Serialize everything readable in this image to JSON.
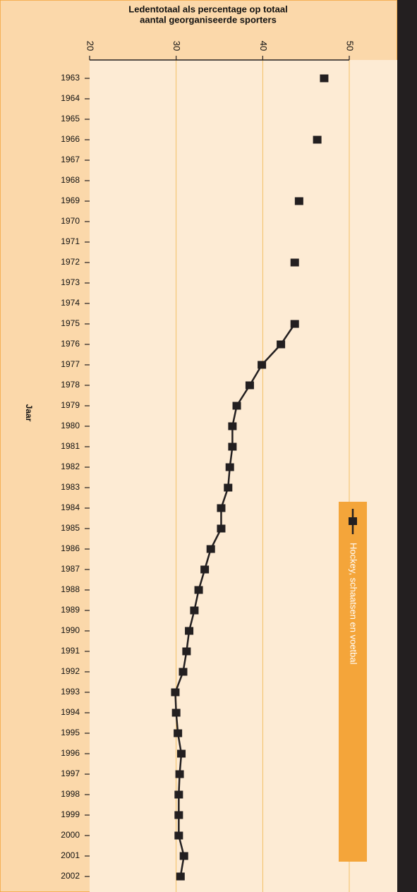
{
  "chart_data": {
    "type": "line",
    "title": [
      "Ledentotaal als percentage op totaal",
      "aantal georganiseerde sporters"
    ],
    "y_label": "Jaar",
    "categories": [
      "1963",
      "1964",
      "1965",
      "1966",
      "1967",
      "1968",
      "1969",
      "1970",
      "1971",
      "1972",
      "1973",
      "1974",
      "1975",
      "1976",
      "1977",
      "1978",
      "1979",
      "1980",
      "1981",
      "1982",
      "1983",
      "1984",
      "1985",
      "1986",
      "1987",
      "1988",
      "1989",
      "1990",
      "1991",
      "1992",
      "1993",
      "1994",
      "1995",
      "1996",
      "1997",
      "1998",
      "1999",
      "2000",
      "2001",
      "2002"
    ],
    "series": [
      {
        "name": "Hockey, schaatsen en voetbal",
        "color": "#231f20",
        "values": [
          47.1,
          null,
          null,
          46.3,
          null,
          null,
          44.2,
          null,
          null,
          43.7,
          null,
          null,
          43.7,
          42.1,
          39.9,
          38.5,
          37.0,
          36.5,
          36.5,
          36.2,
          36.0,
          35.2,
          35.2,
          34.0,
          33.3,
          32.6,
          32.1,
          31.5,
          31.2,
          30.8,
          29.9,
          30.0,
          30.2,
          30.6,
          30.4,
          30.3,
          30.3,
          30.3,
          30.9,
          30.5
        ]
      }
    ],
    "xlim": [
      20,
      50
    ],
    "xticks": [
      20,
      30,
      40,
      50
    ],
    "grid": true,
    "legend": "right"
  }
}
